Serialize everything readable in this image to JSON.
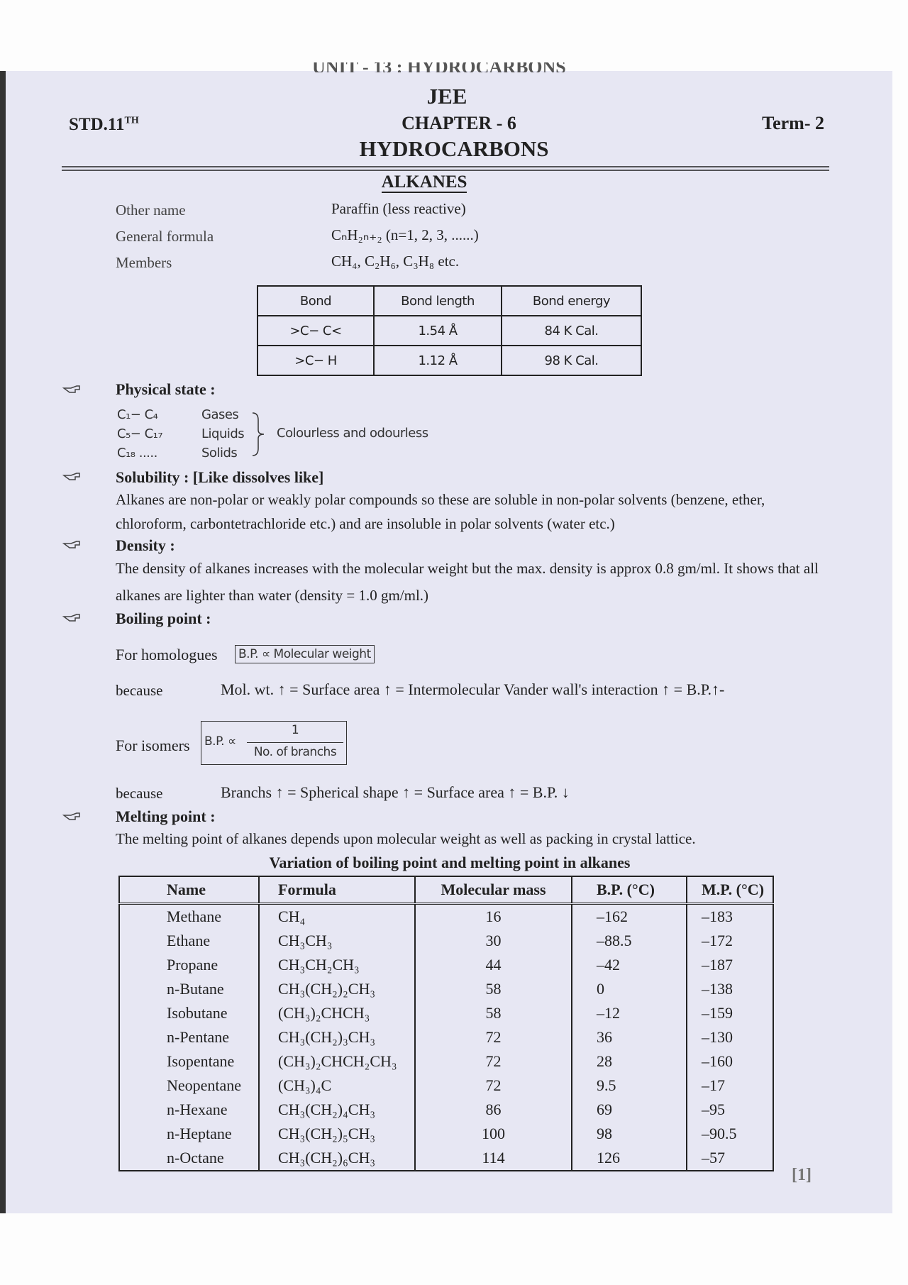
{
  "header": {
    "unit": "UNIT - 13 : HYDROCARBONS",
    "exam": "JEE",
    "standard": "STD.11",
    "standard_suffix": "TH",
    "chapter": "CHAPTER - 6",
    "term": "Term- 2",
    "title": "HYDROCARBONS"
  },
  "section_title": "ALKANES",
  "properties": [
    {
      "label": "Other name",
      "value": "Paraffin (less reactive)"
    },
    {
      "label": "General formula",
      "value": "CₙH₂ₙ₊₂ (n=1, 2, 3, ......)"
    },
    {
      "label": "Members",
      "value": "CH₄, C₂H₆, C₃H₈  etc."
    }
  ],
  "bond_table": {
    "header": [
      "Bond",
      "Bond length",
      "Bond energy"
    ],
    "rows": [
      [
        ">C− C<",
        "1.54 Å",
        "84 K Cal."
      ],
      [
        ">C− H",
        "1.12 Å",
        "98 K Cal."
      ]
    ]
  },
  "physical_state": {
    "heading": "Physical state :",
    "rows": [
      {
        "range": "C₁− C₄",
        "state": "Gases"
      },
      {
        "range": "C₅− C₁₇",
        "state": "Liquids"
      },
      {
        "range": "C₁₈ .....",
        "state": "Solids"
      }
    ],
    "note": "Colourless and odourless"
  },
  "solubility": {
    "heading": "Solubility : [Like dissolves like]",
    "text": "Alkanes are non-polar or weakly polar compounds so these are soluble in non-polar solvents (benzene, ether, chloroform, carbontetrachloride etc.) and are insoluble in polar solvents (water etc.)"
  },
  "density": {
    "heading": "Density :",
    "text": "The density of alkanes increases with the molecular weight but the max. density is approx 0.8 gm/ml. It shows that all alkanes are lighter than water (density = 1.0 gm/ml.)"
  },
  "boiling_point": {
    "heading": "Boiling point :",
    "homologues": {
      "label": "For homologues",
      "formula": "B.P. ∝ Molecular weight"
    },
    "homologues_reason": {
      "label": "because",
      "text": "Mol. wt. ↑ = Surface area ↑ = Intermolecular Vander wall's interaction ↑ = B.P.↑-"
    },
    "isomers": {
      "label": "For isomers",
      "formula_lhs": "B.P. ∝",
      "numerator": "1",
      "denominator": "No. of branchs"
    },
    "isomers_reason": {
      "label": "because",
      "text": "Branchs ↑ = Spherical shape ↑ = Surface area ↑ = B.P. ↓"
    }
  },
  "melting_point": {
    "heading": "Melting point :",
    "text": "The melting point of alkanes depends upon molecular weight as well as packing in crystal lattice."
  },
  "table": {
    "title": "Variation of boiling point and melting point in alkanes",
    "header": [
      "Name",
      "Formula",
      "Molecular mass",
      "B.P. (°C)",
      "M.P. (°C)"
    ],
    "rows": [
      [
        "Methane",
        "CH₄",
        "16",
        "–162",
        "–183"
      ],
      [
        "Ethane",
        "CH₃CH₃",
        "30",
        "–88.5",
        "–172"
      ],
      [
        "Propane",
        "CH₃CH₂CH₃",
        "44",
        "–42",
        "–187"
      ],
      [
        "n-Butane",
        "CH₃(CH₂)₂CH₃",
        "58",
        "0",
        "–138"
      ],
      [
        "Isobutane",
        "(CH₃)₂CHCH₃",
        "58",
        "–12",
        "–159"
      ],
      [
        "n-Pentane",
        "CH₃(CH₂)₃CH₃",
        "72",
        "36",
        "–130"
      ],
      [
        "Isopentane",
        "(CH₃)₂CHCH₂CH₃",
        "72",
        "28",
        "–160"
      ],
      [
        "Neopentane",
        "(CH₃)₄C",
        "72",
        "9.5",
        "–17"
      ],
      [
        "n-Hexane",
        "CH₃(CH₂)₄CH₃",
        "86",
        "69",
        "–95"
      ],
      [
        "n-Heptane",
        "CH₃(CH₂)₅CH₃",
        "100",
        "98",
        "–90.5"
      ],
      [
        "n-Octane",
        "CH₃(CH₂)₆CH₃",
        "114",
        "126",
        "–57"
      ]
    ]
  },
  "page_number": "[1]"
}
